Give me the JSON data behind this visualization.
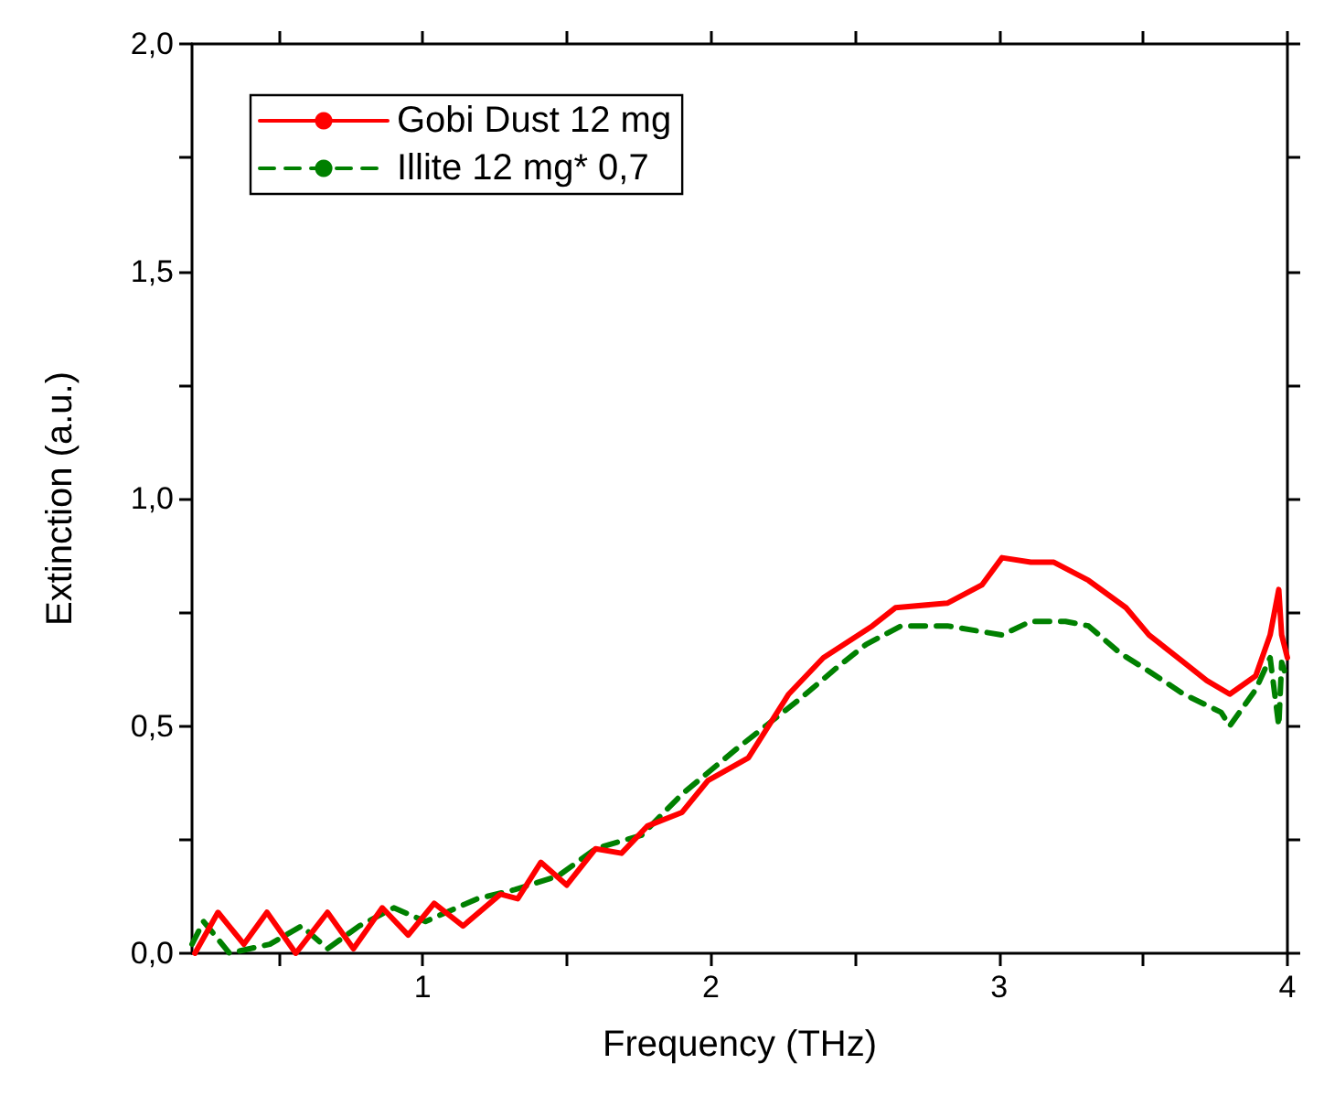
{
  "chart_data": {
    "type": "line",
    "xlabel": "Frequency (THz)",
    "ylabel": "Extinction (a.u.)",
    "xlim": [
      0.2,
      4
    ],
    "xticks": [
      {
        "value": 0.5,
        "label": null
      },
      1,
      {
        "value": 1.5,
        "label": null
      },
      2,
      {
        "value": 2.5,
        "label": null
      },
      3,
      {
        "value": 3.5,
        "label": null
      },
      4
    ],
    "ylim": [
      0,
      2
    ],
    "yticks": [
      {
        "value": 0,
        "label": "0,0"
      },
      {
        "value": 0.25,
        "label": null
      },
      {
        "value": 0.5,
        "label": "0,5"
      },
      {
        "value": 0.75,
        "label": null
      },
      {
        "value": 1,
        "label": "1,0"
      },
      {
        "value": 1.25,
        "label": null
      },
      {
        "value": 1.5,
        "label": "1,5"
      },
      {
        "value": 1.75,
        "label": null
      },
      {
        "value": 2,
        "label": "2,0"
      }
    ],
    "grid": false,
    "legend": "top left",
    "marker": "none",
    "series": [
      {
        "name": "Gobi Dust 12 mg",
        "color": "#ff0000",
        "line_style": "solid",
        "x": [
          0.21,
          0.29,
          0.38,
          0.46,
          0.56,
          0.67,
          0.76,
          0.86,
          0.95,
          1.04,
          1.14,
          1.27,
          1.33,
          1.41,
          1.5,
          1.6,
          1.69,
          1.78,
          1.9,
          1.99,
          2.13,
          2.27,
          2.39,
          2.56,
          2.64,
          2.82,
          2.94,
          3.01,
          3.11,
          3.19,
          3.31,
          3.44,
          3.52,
          3.64,
          3.72,
          3.8,
          3.89,
          3.94,
          3.97,
          3.98,
          4.0
        ],
        "values": [
          0.0,
          0.09,
          0.02,
          0.09,
          0.0,
          0.09,
          0.01,
          0.1,
          0.04,
          0.11,
          0.06,
          0.13,
          0.12,
          0.2,
          0.15,
          0.23,
          0.22,
          0.28,
          0.31,
          0.38,
          0.43,
          0.57,
          0.65,
          0.72,
          0.76,
          0.77,
          0.81,
          0.87,
          0.86,
          0.86,
          0.82,
          0.76,
          0.7,
          0.64,
          0.6,
          0.57,
          0.61,
          0.7,
          0.8,
          0.7,
          0.65
        ]
      },
      {
        "name": "Illite 12 mg* 0,7",
        "color": "#008000",
        "line_style": "dashed",
        "x": [
          0.2,
          0.24,
          0.33,
          0.47,
          0.58,
          0.67,
          0.78,
          0.9,
          1.01,
          1.19,
          1.32,
          1.47,
          1.6,
          1.76,
          1.9,
          2.09,
          2.19,
          2.31,
          2.44,
          2.54,
          2.66,
          2.82,
          3.01,
          3.11,
          3.23,
          3.31,
          3.42,
          3.52,
          3.64,
          3.77,
          3.8,
          3.89,
          3.94,
          3.97,
          3.98,
          4.0
        ],
        "values": [
          0.02,
          0.07,
          0.0,
          0.02,
          0.06,
          0.01,
          0.06,
          0.1,
          0.07,
          0.12,
          0.14,
          0.17,
          0.23,
          0.26,
          0.35,
          0.45,
          0.5,
          0.56,
          0.63,
          0.68,
          0.72,
          0.72,
          0.7,
          0.73,
          0.73,
          0.72,
          0.66,
          0.62,
          0.57,
          0.53,
          0.5,
          0.58,
          0.65,
          0.5,
          0.64,
          0.6
        ]
      }
    ]
  }
}
